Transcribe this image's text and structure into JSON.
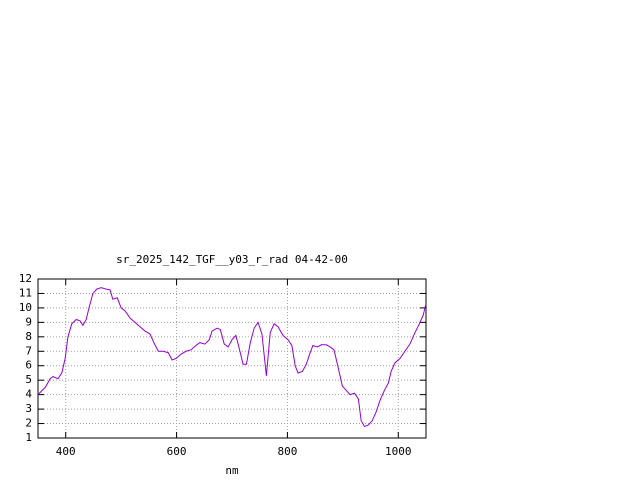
{
  "chart_data": {
    "type": "line",
    "title": "sr_2025_142_TGF__y03_r_rad 04-42-00",
    "x_label": "nm",
    "x": [
      350,
      363,
      372,
      377,
      386,
      393,
      399,
      404,
      411,
      419,
      426,
      431,
      437,
      442,
      449,
      456,
      464,
      473,
      480,
      485,
      493,
      500,
      507,
      516,
      525,
      534,
      543,
      552,
      559,
      567,
      576,
      585,
      592,
      599,
      608,
      617,
      626,
      635,
      642,
      651,
      659,
      664,
      673,
      679,
      686,
      693,
      700,
      707,
      713,
      720,
      726,
      733,
      740,
      747,
      754,
      762,
      769,
      776,
      783,
      792,
      801,
      808,
      814,
      819,
      827,
      834,
      841,
      846,
      854,
      861,
      870,
      877,
      884,
      892,
      899,
      906,
      913,
      921,
      928,
      933,
      939,
      946,
      953,
      960,
      967,
      975,
      982,
      987,
      994,
      1003,
      1012,
      1021,
      1029,
      1038,
      1045,
      1050
    ],
    "series": [
      {
        "color": "#9400d3",
        "values": [
          4.0,
          4.5,
          5.1,
          5.25,
          5.1,
          5.5,
          6.5,
          8.0,
          8.9,
          9.2,
          9.1,
          8.8,
          9.2,
          10.0,
          11.0,
          11.3,
          11.4,
          11.3,
          11.25,
          10.6,
          10.7,
          10.0,
          9.8,
          9.3,
          9.0,
          8.7,
          8.4,
          8.2,
          7.6,
          7.0,
          7.0,
          6.9,
          6.4,
          6.5,
          6.8,
          7.0,
          7.1,
          7.4,
          7.6,
          7.5,
          7.8,
          8.4,
          8.6,
          8.5,
          7.5,
          7.3,
          7.8,
          8.1,
          7.2,
          6.1,
          6.1,
          7.6,
          8.6,
          9.0,
          8.2,
          5.3,
          8.3,
          8.9,
          8.7,
          8.1,
          7.8,
          7.4,
          6.0,
          5.5,
          5.6,
          6.1,
          6.9,
          7.4,
          7.3,
          7.45,
          7.45,
          7.3,
          7.1,
          5.8,
          4.6,
          4.3,
          4.0,
          4.1,
          3.7,
          2.2,
          1.8,
          1.9,
          2.2,
          2.8,
          3.6,
          4.3,
          4.8,
          5.6,
          6.2,
          6.5,
          7.0,
          7.5,
          8.2,
          8.9,
          9.5,
          10.3
        ]
      }
    ],
    "xlim": [
      350,
      1050
    ],
    "xticks": [
      400,
      600,
      800,
      1000
    ],
    "ylim": [
      1,
      12
    ],
    "yticks": [
      1,
      2,
      3,
      4,
      5,
      6,
      7,
      8,
      9,
      10,
      11,
      12
    ],
    "grid": true
  }
}
